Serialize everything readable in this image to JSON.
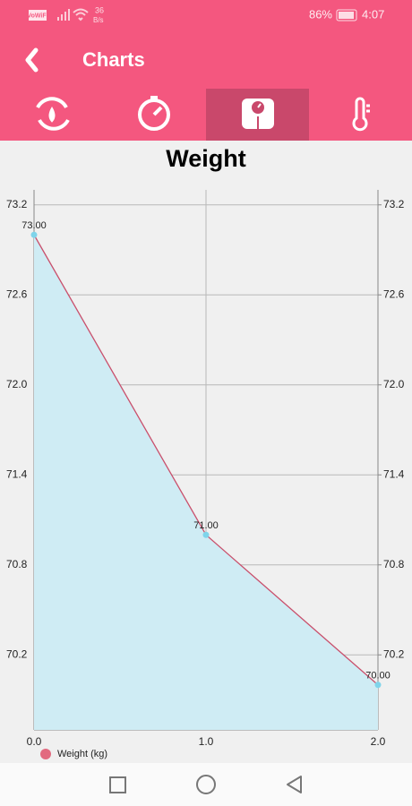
{
  "status": {
    "network": "VoWiFi",
    "speed": "36",
    "speed_unit": "B/s",
    "battery": "86%",
    "time": "4:07"
  },
  "header": {
    "title": "Charts"
  },
  "chart_data": {
    "type": "line",
    "title": "Weight",
    "x": [
      0,
      1,
      2
    ],
    "series": [
      {
        "name": "Weight (kg)",
        "color": "#e26a7f",
        "line_color": "#c9506c",
        "fill_color": "#cfecf4",
        "point_color": "#7fd4ea",
        "values": [
          73,
          71,
          70
        ],
        "value_labels": [
          "73.00",
          "71.00",
          "70.00"
        ]
      }
    ],
    "xlim": [
      0,
      2
    ],
    "xticks": [
      {
        "value": 0,
        "label": "0.0"
      },
      {
        "value": 1,
        "label": "1.0"
      },
      {
        "value": 2,
        "label": "2.0"
      }
    ],
    "ylim": [
      69.7,
      73.3
    ],
    "yticks": [
      70.2,
      70.8,
      71.4,
      {
        "value": 72,
        "label": "72.0"
      },
      72.6,
      73.2
    ],
    "y2lim": [
      69.7,
      73.3
    ],
    "y2ticks": [
      70.2,
      70.8,
      71.4,
      {
        "value": 72,
        "label": "72.0"
      },
      72.6,
      73.2
    ],
    "grid": true,
    "legend": "bottom-left"
  }
}
